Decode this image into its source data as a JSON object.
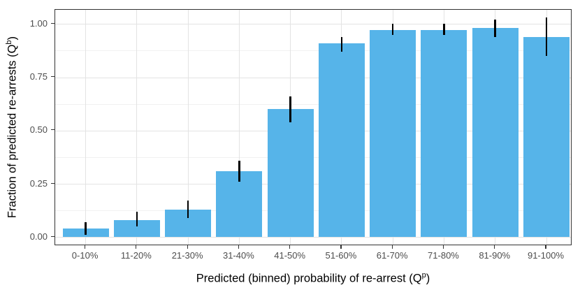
{
  "chart_data": {
    "type": "bar",
    "title": "",
    "xlabel_prefix": "Predicted (binned) probability of re-arrest (Q",
    "xlabel_sup": "p",
    "xlabel_suffix": ")",
    "ylabel_prefix": "Fraction of predicted re-arrests (Q",
    "ylabel_sup": "b",
    "ylabel_suffix": ")",
    "categories": [
      "0-10%",
      "11-20%",
      "21-30%",
      "31-40%",
      "41-50%",
      "51-60%",
      "61-70%",
      "71-80%",
      "81-90%",
      "91-100%"
    ],
    "values": [
      0.04,
      0.08,
      0.13,
      0.31,
      0.6,
      0.91,
      0.97,
      0.97,
      0.98,
      0.94
    ],
    "error_low": [
      0.01,
      0.05,
      0.09,
      0.26,
      0.54,
      0.87,
      0.95,
      0.95,
      0.94,
      0.85
    ],
    "error_high": [
      0.07,
      0.12,
      0.17,
      0.36,
      0.66,
      0.94,
      1.0,
      1.0,
      1.02,
      1.03
    ],
    "y_tick_values": [
      0,
      0.25,
      0.5,
      0.75,
      1.0
    ],
    "y_tick_labels": [
      "0.00",
      "0.25",
      "0.50",
      "0.75",
      "1.00"
    ],
    "y_minor_tick_values": [
      0.125,
      0.375,
      0.625,
      0.875
    ],
    "ylim": [
      -0.04,
      1.07
    ],
    "grid": "on",
    "legend": "none",
    "colors": {
      "bar_fill": "#56B4E9",
      "error_bar": "#000000",
      "grid_major": "#e3e3e3",
      "grid_minor": "#f1f1f1",
      "panel_border": "#333333",
      "tick_text": "#4d4d4d",
      "axis_title_text": "#000000"
    }
  }
}
